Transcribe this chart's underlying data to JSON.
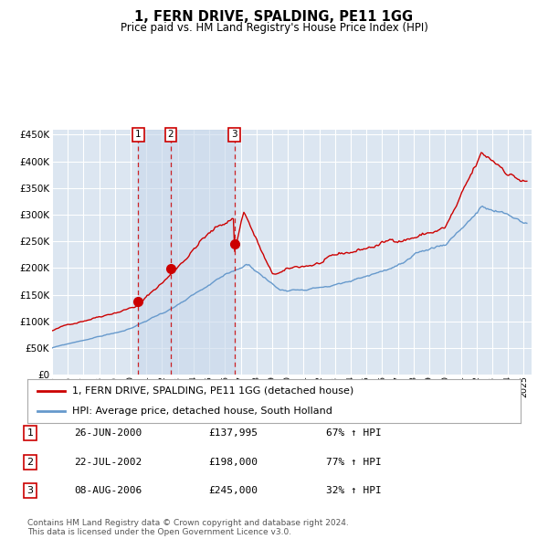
{
  "title": "1, FERN DRIVE, SPALDING, PE11 1GG",
  "subtitle": "Price paid vs. HM Land Registry's House Price Index (HPI)",
  "outer_bg_color": "#ffffff",
  "plot_bg_color": "#dce6f1",
  "red_line_color": "#cc0000",
  "blue_line_color": "#6699cc",
  "shade_color": "#c8d8eb",
  "ylim": [
    0,
    460000
  ],
  "yticks": [
    0,
    50000,
    100000,
    150000,
    200000,
    250000,
    300000,
    350000,
    400000,
    450000
  ],
  "xlim_start": 1995.0,
  "xlim_end": 2025.5,
  "sale_dates": [
    2000.487,
    2002.554,
    2006.597
  ],
  "sale_prices": [
    137995,
    198000,
    245000
  ],
  "sale_labels": [
    "1",
    "2",
    "3"
  ],
  "legend_line1": "1, FERN DRIVE, SPALDING, PE11 1GG (detached house)",
  "legend_line2": "HPI: Average price, detached house, South Holland",
  "table_rows": [
    {
      "num": "1",
      "date": "26-JUN-2000",
      "price": "£137,995",
      "change": "67% ↑ HPI"
    },
    {
      "num": "2",
      "date": "22-JUL-2002",
      "price": "£198,000",
      "change": "77% ↑ HPI"
    },
    {
      "num": "3",
      "date": "08-AUG-2006",
      "price": "£245,000",
      "change": "32% ↑ HPI"
    }
  ],
  "footer": "Contains HM Land Registry data © Crown copyright and database right 2024.\nThis data is licensed under the Open Government Licence v3.0."
}
